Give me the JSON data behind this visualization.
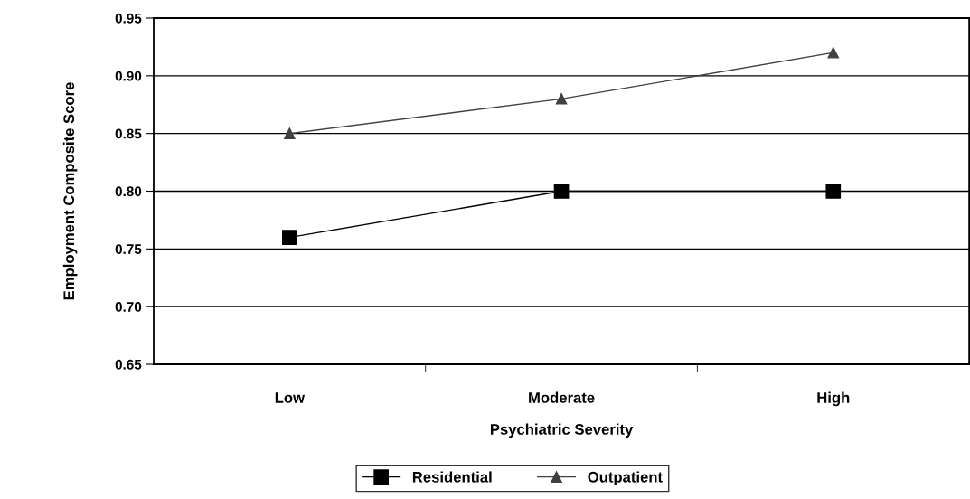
{
  "chart_data": {
    "type": "line",
    "xlabel": "Psychiatric Severity",
    "ylabel": "Employment Composite Score",
    "categories": [
      "Low",
      "Moderate",
      "High"
    ],
    "series": [
      {
        "name": "Residential",
        "color": "#000000",
        "values": [
          0.76,
          0.8,
          0.8
        ],
        "marker": "square"
      },
      {
        "name": "Outpatient",
        "color": "#404040",
        "values": [
          0.85,
          0.88,
          0.92
        ],
        "marker": "triangle"
      }
    ],
    "ylim": [
      0.65,
      0.95
    ],
    "yticks": [
      {
        "value": 0.65,
        "label": "0.65"
      },
      {
        "value": 0.7,
        "label": "0.70"
      },
      {
        "value": 0.75,
        "label": "0.75"
      },
      {
        "value": 0.8,
        "label": "0.80"
      },
      {
        "value": 0.85,
        "label": "0.85"
      },
      {
        "value": 0.9,
        "label": "0.90"
      },
      {
        "value": 0.95,
        "label": "0.95"
      }
    ],
    "grid": "y",
    "legend": "bottom",
    "line_style": "solid"
  }
}
